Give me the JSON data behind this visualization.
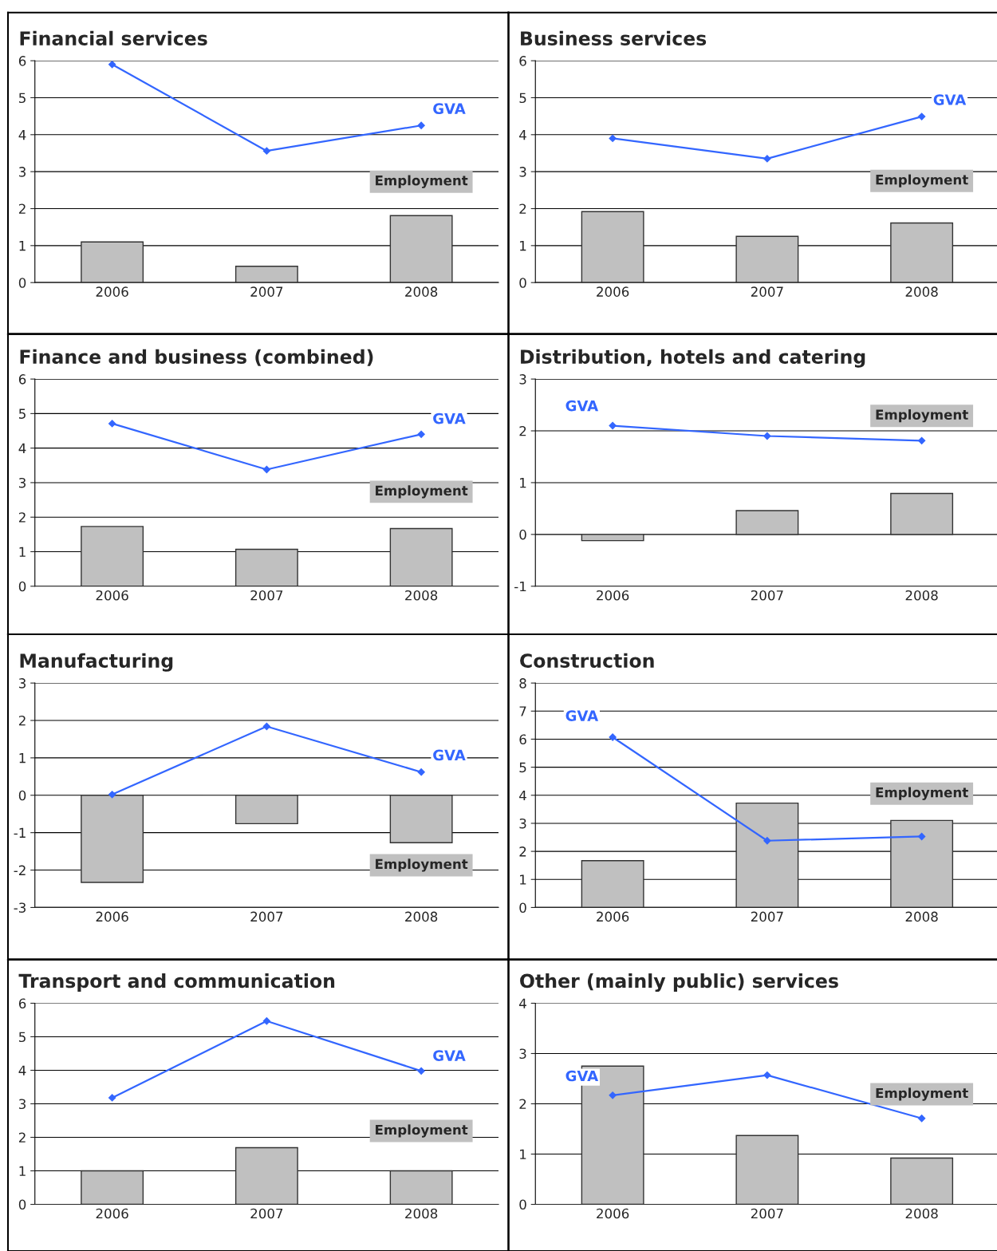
{
  "chart_data": [
    {
      "type": "bar",
      "title": "Financial services",
      "categories": [
        "2006",
        "2007",
        "2008"
      ],
      "ylim": [
        0,
        6
      ],
      "yticks": [
        0,
        1,
        2,
        3,
        4,
        5,
        6
      ],
      "grid": "y",
      "legend": false,
      "series": [
        {
          "name": "Employment",
          "color": "#c0c0c0",
          "values": [
            1.1,
            0.44,
            1.81
          ]
        },
        {
          "name": "GVA",
          "type": "line",
          "color": "#3366ff",
          "marker": "diamond",
          "values": [
            5.9,
            3.56,
            4.25
          ]
        }
      ]
    },
    {
      "type": "bar",
      "title": "Business services",
      "categories": [
        "2006",
        "2007",
        "2008"
      ],
      "ylim": [
        0,
        6
      ],
      "yticks": [
        0,
        1,
        2,
        3,
        4,
        5,
        6
      ],
      "grid": "y",
      "legend": false,
      "series": [
        {
          "name": "Employment",
          "color": "#c0c0c0",
          "values": [
            1.92,
            1.25,
            1.61
          ]
        },
        {
          "name": "GVA",
          "type": "line",
          "color": "#3366ff",
          "marker": "diamond",
          "values": [
            3.9,
            3.35,
            4.49
          ]
        }
      ]
    },
    {
      "type": "bar",
      "title": "Finance and business (combined)",
      "categories": [
        "2006",
        "2007",
        "2008"
      ],
      "ylim": [
        0,
        6
      ],
      "yticks": [
        0,
        1,
        2,
        3,
        4,
        5,
        6
      ],
      "grid": "y",
      "legend": false,
      "series": [
        {
          "name": "Employment",
          "color": "#c0c0c0",
          "values": [
            1.73,
            1.07,
            1.67
          ]
        },
        {
          "name": "GVA",
          "type": "line",
          "color": "#3366ff",
          "marker": "diamond",
          "values": [
            4.71,
            3.38,
            4.4
          ]
        }
      ]
    },
    {
      "type": "bar",
      "title": "Distribution, hotels and catering",
      "categories": [
        "2006",
        "2007",
        "2008"
      ],
      "ylim": [
        -1,
        3
      ],
      "yticks": [
        -1,
        0,
        1,
        2,
        3
      ],
      "grid": "y",
      "legend": false,
      "series": [
        {
          "name": "Employment",
          "color": "#c0c0c0",
          "values": [
            -0.12,
            0.46,
            0.79
          ]
        },
        {
          "name": "GVA",
          "type": "line",
          "color": "#3366ff",
          "marker": "diamond",
          "values": [
            2.1,
            1.9,
            1.81
          ]
        }
      ]
    },
    {
      "type": "bar",
      "title": "Manufacturing",
      "categories": [
        "2006",
        "2007",
        "2008"
      ],
      "ylim": [
        -3,
        3
      ],
      "yticks": [
        -3,
        -2,
        -1,
        0,
        1,
        2,
        3
      ],
      "grid": "y",
      "legend": false,
      "series": [
        {
          "name": "Employment",
          "color": "#c0c0c0",
          "values": [
            -2.33,
            -0.76,
            -1.27
          ]
        },
        {
          "name": "GVA",
          "type": "line",
          "color": "#3366ff",
          "marker": "diamond",
          "values": [
            0.02,
            1.84,
            0.62
          ]
        }
      ]
    },
    {
      "type": "bar",
      "title": "Construction",
      "categories": [
        "2006",
        "2007",
        "2008"
      ],
      "ylim": [
        0,
        8
      ],
      "yticks": [
        0,
        1,
        2,
        3,
        4,
        5,
        6,
        7,
        8
      ],
      "grid": "y",
      "legend": false,
      "series": [
        {
          "name": "Employment",
          "color": "#c0c0c0",
          "values": [
            1.67,
            3.72,
            3.1
          ]
        },
        {
          "name": "GVA",
          "type": "line",
          "color": "#3366ff",
          "marker": "diamond",
          "values": [
            6.07,
            2.38,
            2.53
          ]
        }
      ]
    },
    {
      "type": "bar",
      "title": "Transport and communication",
      "categories": [
        "2006",
        "2007",
        "2008"
      ],
      "ylim": [
        0,
        6
      ],
      "yticks": [
        0,
        1,
        2,
        3,
        4,
        5,
        6
      ],
      "grid": "y",
      "legend": false,
      "series": [
        {
          "name": "Employment",
          "color": "#c0c0c0",
          "values": [
            1.0,
            1.69,
            1.0
          ]
        },
        {
          "name": "GVA",
          "type": "line",
          "color": "#3366ff",
          "marker": "diamond",
          "values": [
            3.18,
            5.47,
            3.98
          ]
        }
      ]
    },
    {
      "type": "bar",
      "title": "Other (mainly public) services",
      "categories": [
        "2006",
        "2007",
        "2008"
      ],
      "ylim": [
        0,
        4
      ],
      "yticks": [
        0,
        1,
        2,
        3,
        4
      ],
      "grid": "y",
      "legend": false,
      "series": [
        {
          "name": "Employment",
          "color": "#c0c0c0",
          "values": [
            2.75,
            1.37,
            0.92
          ]
        },
        {
          "name": "GVA",
          "type": "line",
          "color": "#3366ff",
          "marker": "diamond",
          "values": [
            2.17,
            2.57,
            1.71
          ]
        }
      ]
    }
  ]
}
